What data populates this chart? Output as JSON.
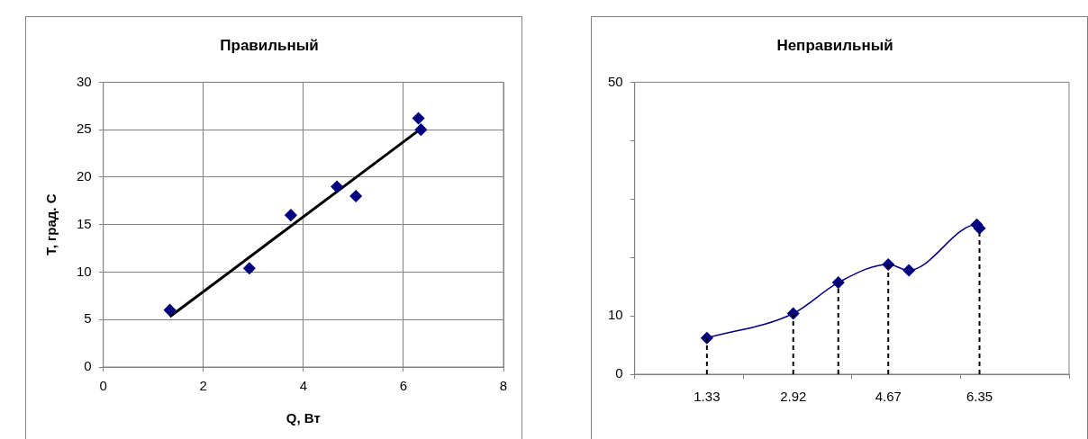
{
  "chart_data": [
    {
      "type": "scatter",
      "title": "Правильный",
      "xlabel": "Q, Вт",
      "ylabel": "Т, град. С",
      "xlim": [
        0,
        8
      ],
      "xticks": [
        0,
        2,
        4,
        6,
        8
      ],
      "ylim": [
        0,
        30
      ],
      "yticks": [
        0,
        5,
        10,
        15,
        20,
        25,
        30
      ],
      "grid": true,
      "legend": false,
      "marker": "diamond",
      "series": [
        {
          "color": "#000080",
          "x": [
            1.33,
            2.92,
            3.75,
            4.67,
            5.05,
            6.3,
            6.35
          ],
          "values": [
            6,
            10.4,
            16,
            19,
            18,
            26.2,
            25
          ]
        },
        {
          "type": "line",
          "color": "#000000",
          "marker": "none",
          "x": [
            1.33,
            6.35
          ],
          "values": [
            5.3,
            25.1
          ]
        }
      ]
    },
    {
      "type": "line",
      "title": "Неправильный",
      "xlim": [
        0,
        8
      ],
      "xticks": [
        {
          "value": 0,
          "label": null
        },
        {
          "value": 2,
          "label": null
        },
        {
          "value": 4,
          "label": null
        },
        {
          "value": 6,
          "label": null
        },
        {
          "value": 8,
          "label": null
        }
      ],
      "ylim": [
        0,
        50
      ],
      "yticks": [
        0,
        10,
        {
          "value": 20,
          "label": null
        },
        {
          "value": 30,
          "label": null
        },
        {
          "value": 40,
          "label": null
        },
        50
      ],
      "grid": false,
      "legend": false,
      "marker": "diamond",
      "series": [
        {
          "color": "#000080",
          "x": [
            1.33,
            2.92,
            3.75,
            4.67,
            5.05,
            6.3,
            6.35
          ],
          "values": [
            6.2,
            10.4,
            15.7,
            18.8,
            17.8,
            25.6,
            25
          ]
        }
      ],
      "ref_lines": [
        {
          "axis": "x",
          "value": 1.33,
          "label": "1.33",
          "line_style": "dashed"
        },
        {
          "axis": "x",
          "value": 2.92,
          "label": "2.92",
          "line_style": "dashed"
        },
        {
          "axis": "x",
          "value": 3.75,
          "label": null,
          "line_style": "dashed"
        },
        {
          "axis": "x",
          "value": 4.67,
          "label": "4.67",
          "line_style": "dashed"
        },
        {
          "axis": "x",
          "value": 6.35,
          "label": "6.35",
          "line_style": "dashed"
        }
      ]
    }
  ]
}
